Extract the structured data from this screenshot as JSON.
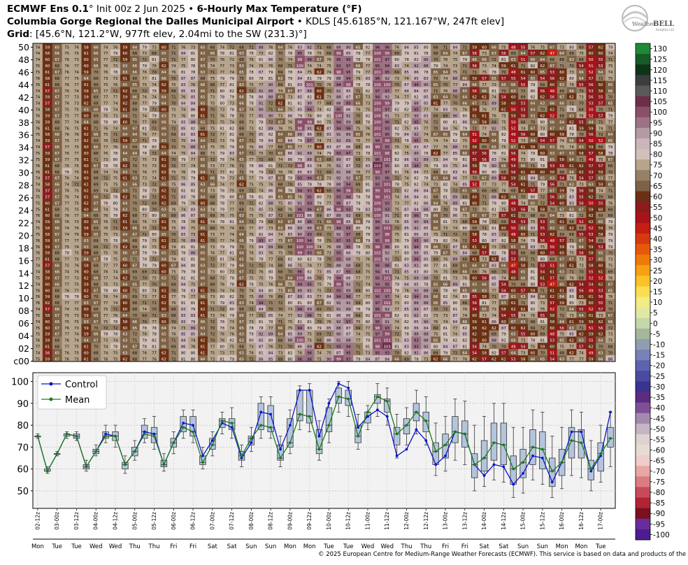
{
  "header": {
    "line1_model": "ECMWF Ens 0.1",
    "line1_init": "° Init 00z 2 Jun 2025 ",
    "line1_bullet": "• ",
    "line1_var": "6-Hourly Max Temperature (°F)",
    "line2_station": "Columbia Gorge Regional the Dalles Municipal Airport",
    "line2_rest": " • KDLS [45.6185°N, 121.167°W, 247ft elev]",
    "line3_label": "Grid",
    "line3_rest": ": [45.6°N, 121.2°W, 977ft elev, 2.04mi to the SW (231.3)°]"
  },
  "logo": {
    "text1": "Weather",
    "text2": "BELL",
    "sub": "Analytics LLC"
  },
  "copyright": "© 2025 European Centre for Medium-Range Weather Forecasts (ECMWF). This service is based on data and products of the ECMWF.",
  "chart_data": [
    {
      "type": "heatmap",
      "title": "6-Hourly Max Temperature (°F) ensemble members",
      "members_axis_ticks": [
        "50",
        "48",
        "46",
        "44",
        "42",
        "40",
        "38",
        "36",
        "34",
        "32",
        "30",
        "28",
        "26",
        "24",
        "22",
        "20",
        "18",
        "16",
        "14",
        "12",
        "10",
        "08",
        "06",
        "04",
        "02",
        "c00"
      ],
      "member_count": 51,
      "time_steps": 60,
      "representative_member_values": [
        75,
        59,
        67,
        76,
        75,
        61,
        68,
        75,
        76,
        62,
        68,
        75,
        75,
        63,
        72,
        80,
        81,
        64,
        71,
        77,
        78,
        66,
        75,
        82,
        79,
        69,
        76,
        88,
        87,
        70,
        77,
        93,
        92,
        73,
        78,
        98,
        96,
        76,
        80,
        89,
        83,
        70,
        74,
        79,
        75,
        62,
        68,
        76,
        70,
        59,
        63,
        71,
        67,
        58,
        66,
        73,
        65,
        57,
        63,
        72
      ]
    },
    {
      "type": "box",
      "title": "",
      "legend": [
        "Control",
        "Mean"
      ],
      "y_ticks": [
        50,
        60,
        70,
        80,
        90,
        100
      ],
      "ylim": [
        42,
        104
      ],
      "x_time_labels": [
        "02-12z",
        "03-00z",
        "03-12z",
        "04-00z",
        "04-12z",
        "05-00z",
        "05-12z",
        "06-00z",
        "06-12z",
        "07-00z",
        "07-12z",
        "08-00z",
        "08-12z",
        "09-00z",
        "09-12z",
        "10-00z",
        "10-12z",
        "11-00z",
        "11-12z",
        "12-00z",
        "12-12z",
        "13-00z",
        "13-12z",
        "14-00z",
        "14-12z",
        "15-00z",
        "15-12z",
        "16-00z",
        "16-12z",
        "17-00z"
      ],
      "x_day_labels": [
        "Mon",
        "Tue",
        "Tue",
        "Wed",
        "Wed",
        "Thu",
        "Thu",
        "Fri",
        "Fri",
        "Sat",
        "Sat",
        "Sun",
        "Sun",
        "Mon",
        "Mon",
        "Tue",
        "Tue",
        "Wed",
        "Wed",
        "Thu",
        "Thu",
        "Fri",
        "Fri",
        "Sat",
        "Sat",
        "Sun",
        "Sun",
        "Mon",
        "Mon",
        "Tue"
      ],
      "control": [
        75,
        59,
        67,
        76,
        75,
        61,
        68,
        76,
        75,
        62,
        68,
        77,
        76,
        62,
        72,
        81,
        80,
        66,
        73,
        81,
        79,
        65,
        72,
        86,
        85,
        69,
        80,
        96,
        96,
        75,
        90,
        99,
        97,
        79,
        84,
        87,
        84,
        66,
        69,
        78,
        73,
        62,
        66,
        77,
        76,
        62,
        57,
        62,
        61,
        53,
        58,
        66,
        65,
        54,
        63,
        77,
        77,
        59,
        66,
        86
      ],
      "mean": [
        75,
        59,
        67,
        76,
        75,
        61,
        68,
        75,
        75,
        62,
        68,
        76,
        75,
        62,
        72,
        79,
        77,
        63,
        71,
        82,
        81,
        66,
        74,
        80,
        79,
        65,
        72,
        85,
        84,
        69,
        80,
        93,
        92,
        75,
        86,
        93,
        91,
        76,
        80,
        86,
        82,
        68,
        71,
        77,
        76,
        62,
        65,
        72,
        71,
        60,
        63,
        70,
        69,
        59,
        63,
        73,
        72,
        60,
        67,
        74
      ],
      "q1": [
        75,
        59,
        67,
        75,
        74,
        60,
        67,
        74,
        73,
        60,
        66,
        74,
        72,
        61,
        70,
        77,
        75,
        62,
        69,
        79,
        78,
        64,
        71,
        78,
        77,
        64,
        70,
        82,
        81,
        67,
        77,
        90,
        89,
        72,
        81,
        90,
        86,
        71,
        76,
        82,
        77,
        62,
        65,
        72,
        70,
        56,
        59,
        64,
        62,
        53,
        56,
        62,
        60,
        52,
        57,
        65,
        65,
        55,
        59,
        70
      ],
      "q3": [
        75,
        60,
        67,
        76,
        76,
        62,
        69,
        77,
        77,
        63,
        70,
        80,
        79,
        64,
        74,
        84,
        84,
        66,
        74,
        83,
        83,
        68,
        75,
        90,
        89,
        71,
        83,
        96,
        96,
        78,
        88,
        97,
        96,
        80,
        86,
        94,
        92,
        79,
        83,
        90,
        86,
        72,
        76,
        84,
        82,
        67,
        73,
        81,
        81,
        66,
        69,
        78,
        77,
        65,
        69,
        79,
        78,
        64,
        72,
        79
      ],
      "median": [
        75,
        59,
        67,
        76,
        75,
        61,
        68,
        75,
        75,
        62,
        68,
        77,
        76,
        62,
        72,
        79,
        77,
        63,
        71,
        82,
        81,
        66,
        74,
        80,
        79,
        65,
        72,
        85,
        84,
        69,
        80,
        93,
        92,
        75,
        86,
        93,
        91,
        76,
        80,
        86,
        82,
        68,
        71,
        77,
        76,
        62,
        65,
        72,
        71,
        60,
        63,
        70,
        69,
        59,
        63,
        73,
        72,
        60,
        67,
        74
      ],
      "whisker_low": [
        74,
        58,
        66,
        74,
        73,
        59,
        66,
        72,
        70,
        58,
        64,
        72,
        69,
        59,
        67,
        74,
        72,
        60,
        66,
        76,
        74,
        61,
        68,
        74,
        74,
        61,
        67,
        78,
        77,
        64,
        72,
        86,
        84,
        69,
        78,
        84,
        80,
        65,
        71,
        76,
        71,
        57,
        59,
        64,
        62,
        50,
        52,
        55,
        54,
        47,
        49,
        55,
        53,
        47,
        51,
        57,
        56,
        50,
        54,
        61
      ],
      "whisker_high": [
        76,
        61,
        68,
        77,
        77,
        64,
        71,
        80,
        80,
        66,
        73,
        83,
        84,
        67,
        77,
        87,
        87,
        70,
        77,
        86,
        88,
        71,
        79,
        93,
        93,
        75,
        87,
        98,
        99,
        82,
        92,
        100,
        100,
        85,
        89,
        99,
        97,
        85,
        88,
        96,
        93,
        81,
        84,
        92,
        91,
        80,
        84,
        90,
        90,
        79,
        79,
        87,
        86,
        75,
        79,
        87,
        86,
        73,
        80,
        86
      ]
    },
    {
      "type": "colorbar",
      "title": "",
      "ticks": [
        130,
        125,
        120,
        115,
        110,
        105,
        100,
        95,
        90,
        85,
        80,
        75,
        70,
        65,
        60,
        55,
        50,
        45,
        40,
        35,
        30,
        25,
        20,
        15,
        10,
        5,
        0,
        -5,
        -10,
        -15,
        -20,
        -25,
        -30,
        -35,
        -40,
        -45,
        -50,
        -55,
        -60,
        -65,
        -70,
        -75,
        -80,
        -85,
        -90,
        -95,
        -100
      ],
      "colors": [
        "#1e8a37",
        "#165c27",
        "#0e3417",
        "#3a3e40",
        "#5a5a5a",
        "#6e2e49",
        "#8a5068",
        "#9c7284",
        "#b59aa4",
        "#cbb4ba",
        "#d0c0b8",
        "#b7a48d",
        "#978166",
        "#7d6246",
        "#6b3014",
        "#8b1c1e",
        "#a8131a",
        "#c41d12",
        "#d63a10",
        "#e55a0a",
        "#f07a08",
        "#f7a014",
        "#fbc22a",
        "#fbdd52",
        "#f2ec82",
        "#dfe9a2",
        "#c7d6a8",
        "#a6b69a",
        "#8f9db0",
        "#7781b8",
        "#5c64b0",
        "#4a4aa0",
        "#3b3390",
        "#5b2c80",
        "#7f4f95",
        "#a389ae",
        "#c4b4c4",
        "#dcd4d0",
        "#e8dcd2",
        "#f0cccc",
        "#e9a6a6",
        "#dc7c80",
        "#c84a5c",
        "#b02434",
        "#7a1020",
        "#6a2c9c",
        "#4e1c92"
      ]
    }
  ]
}
